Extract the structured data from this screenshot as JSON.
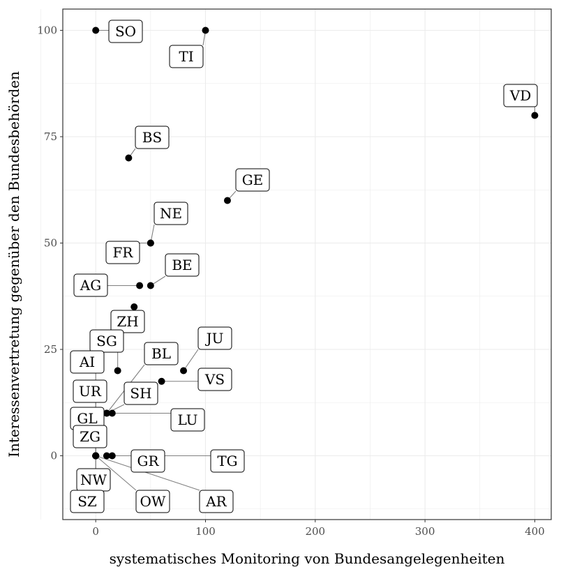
{
  "chart_data": {
    "type": "scatter",
    "title": "",
    "xlabel": "systematisches Monitoring von Bundesangelegenheiten",
    "ylabel": "Interessenvertretung gegenüber den Bundesbehörden",
    "xlim": [
      -30,
      415
    ],
    "ylim": [
      -15,
      105
    ],
    "x_ticks": [
      0,
      100,
      200,
      300,
      400
    ],
    "y_ticks": [
      0,
      25,
      50,
      75,
      100
    ],
    "grid": true,
    "colors": {
      "point": "#000000",
      "grid": "#ebebeb",
      "panel_border": "#333333",
      "connector": "#808080"
    },
    "points": [
      {
        "label": "SO",
        "x": 0,
        "y": 100
      },
      {
        "label": "TI",
        "x": 100,
        "y": 100
      },
      {
        "label": "VD",
        "x": 400,
        "y": 80
      },
      {
        "label": "BS",
        "x": 30,
        "y": 70
      },
      {
        "label": "GE",
        "x": 120,
        "y": 60
      },
      {
        "label": "NE",
        "x": 50,
        "y": 50
      },
      {
        "label": "FR",
        "x": 50,
        "y": 50
      },
      {
        "label": "BE",
        "x": 50,
        "y": 40
      },
      {
        "label": "AG",
        "x": 40,
        "y": 40
      },
      {
        "label": "ZH",
        "x": 35,
        "y": 35
      },
      {
        "label": "JU",
        "x": 80,
        "y": 20
      },
      {
        "label": "SG",
        "x": 20,
        "y": 20
      },
      {
        "label": "BL",
        "x": 10,
        "y": 10
      },
      {
        "label": "VS",
        "x": 60,
        "y": 17.5
      },
      {
        "label": "AI",
        "x": 0,
        "y": 0
      },
      {
        "label": "SH",
        "x": 10,
        "y": 10
      },
      {
        "label": "UR",
        "x": 0,
        "y": 0
      },
      {
        "label": "LU",
        "x": 15,
        "y": 10
      },
      {
        "label": "GL",
        "x": 0,
        "y": 0
      },
      {
        "label": "ZG",
        "x": 0,
        "y": 0
      },
      {
        "label": "GR",
        "x": 10,
        "y": 0
      },
      {
        "label": "TG",
        "x": 15,
        "y": 0
      },
      {
        "label": "NW",
        "x": 0,
        "y": 0
      },
      {
        "label": "SZ",
        "x": 0,
        "y": 0
      },
      {
        "label": "OW",
        "x": 0,
        "y": 0
      },
      {
        "label": "AR",
        "x": 0,
        "y": 0
      }
    ]
  }
}
